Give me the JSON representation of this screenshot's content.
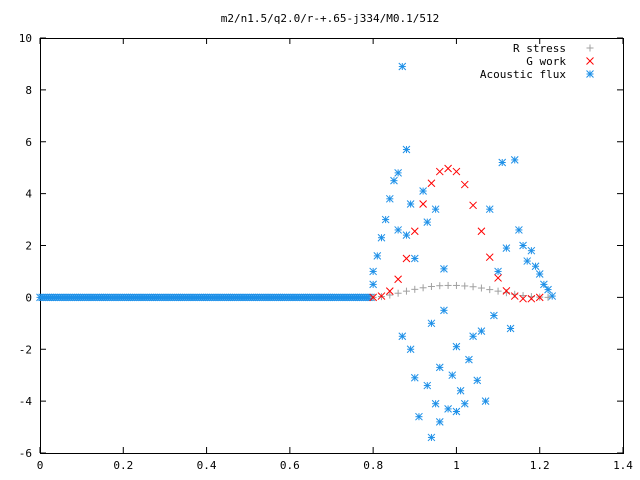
{
  "chart_data": {
    "type": "scatter",
    "title": "m2/n1.5/q2.0/r-+.65-j334/M0.1/512",
    "xlabel": "",
    "ylabel": "",
    "xlim": [
      0,
      1.4
    ],
    "ylim": [
      -6,
      10
    ],
    "x_ticks": [
      0,
      0.2,
      0.4,
      0.6,
      0.8,
      1,
      1.2,
      1.4
    ],
    "x_tick_labels": [
      "0",
      "0.2",
      "0.4",
      "0.6",
      "0.8",
      "1",
      "1.2",
      "1.4"
    ],
    "y_ticks": [
      -6,
      -4,
      -2,
      0,
      2,
      4,
      6,
      8,
      10
    ],
    "y_tick_labels": [
      "-6",
      "-4",
      "-2",
      "0",
      "2",
      "4",
      "6",
      "8",
      "10"
    ],
    "grid": false,
    "legend_position": "top-right",
    "series": [
      {
        "name": "R stress",
        "marker": "plus",
        "color": "#a0a0a0",
        "x": [
          0.8,
          0.82,
          0.84,
          0.86,
          0.88,
          0.9,
          0.92,
          0.94,
          0.96,
          0.98,
          1.0,
          1.02,
          1.04,
          1.06,
          1.08,
          1.1,
          1.12,
          1.14,
          1.16,
          1.18,
          1.2,
          1.22
        ],
        "y": [
          0.0,
          0.03,
          0.09,
          0.16,
          0.24,
          0.31,
          0.37,
          0.42,
          0.45,
          0.46,
          0.46,
          0.44,
          0.41,
          0.36,
          0.3,
          0.24,
          0.18,
          0.12,
          0.07,
          0.03,
          0.01,
          0.0
        ]
      },
      {
        "name": "G work",
        "marker": "cross",
        "color": "#ff0000",
        "x": [
          0.8,
          0.82,
          0.84,
          0.86,
          0.88,
          0.9,
          0.92,
          0.94,
          0.96,
          0.98,
          1.0,
          1.02,
          1.04,
          1.06,
          1.08,
          1.1,
          1.12,
          1.14,
          1.16,
          1.18,
          1.2
        ],
        "y": [
          0.0,
          0.05,
          0.24,
          0.7,
          1.5,
          2.55,
          3.6,
          4.4,
          4.85,
          4.97,
          4.85,
          4.35,
          3.55,
          2.55,
          1.55,
          0.75,
          0.25,
          0.05,
          -0.05,
          -0.05,
          0.0
        ]
      },
      {
        "name": "Acoustic flux",
        "marker": "star",
        "color": "#1e90e8",
        "x": [
          0.0,
          0.02,
          0.04,
          0.06,
          0.08,
          0.1,
          0.12,
          0.14,
          0.16,
          0.18,
          0.2,
          0.22,
          0.24,
          0.26,
          0.28,
          0.3,
          0.32,
          0.34,
          0.36,
          0.38,
          0.4,
          0.42,
          0.44,
          0.46,
          0.48,
          0.5,
          0.52,
          0.54,
          0.56,
          0.58,
          0.6,
          0.62,
          0.64,
          0.66,
          0.68,
          0.7,
          0.72,
          0.74,
          0.76,
          0.78,
          0.8,
          0.8,
          0.81,
          0.82,
          0.83,
          0.84,
          0.85,
          0.86,
          0.86,
          0.87,
          0.87,
          0.88,
          0.88,
          0.89,
          0.89,
          0.9,
          0.9,
          0.91,
          0.92,
          0.93,
          0.93,
          0.94,
          0.94,
          0.95,
          0.95,
          0.96,
          0.96,
          0.97,
          0.97,
          0.98,
          0.99,
          1.0,
          1.0,
          1.01,
          1.02,
          1.03,
          1.04,
          1.05,
          1.06,
          1.07,
          1.08,
          1.09,
          1.1,
          1.11,
          1.12,
          1.13,
          1.14,
          1.15,
          1.16,
          1.17,
          1.18,
          1.19,
          1.2,
          1.21,
          1.22,
          1.23
        ],
        "y": [
          0,
          0,
          0,
          0,
          0,
          0,
          0,
          0,
          0,
          0,
          0,
          0,
          0,
          0,
          0,
          0,
          0,
          0,
          0,
          0,
          0,
          0,
          0,
          0,
          0,
          0,
          0,
          0,
          0,
          0,
          0,
          0,
          0,
          0,
          0,
          0,
          0,
          0,
          0,
          0,
          0.5,
          1.0,
          1.6,
          2.3,
          3.0,
          3.8,
          4.5,
          4.8,
          2.6,
          8.9,
          -1.5,
          5.7,
          2.4,
          -2.0,
          3.6,
          -3.1,
          1.5,
          -4.6,
          4.1,
          -3.4,
          2.9,
          -5.4,
          -1.0,
          -4.1,
          3.4,
          -2.7,
          -4.8,
          -0.5,
          1.1,
          -4.3,
          -3.0,
          -1.9,
          -4.4,
          -3.6,
          -4.1,
          -2.4,
          -1.5,
          -3.2,
          -1.3,
          -4.0,
          3.4,
          -0.7,
          1.0,
          5.2,
          1.9,
          -1.2,
          5.3,
          2.6,
          2.0,
          1.4,
          1.8,
          1.2,
          0.9,
          0.5,
          0.3,
          0.05
        ]
      }
    ]
  }
}
